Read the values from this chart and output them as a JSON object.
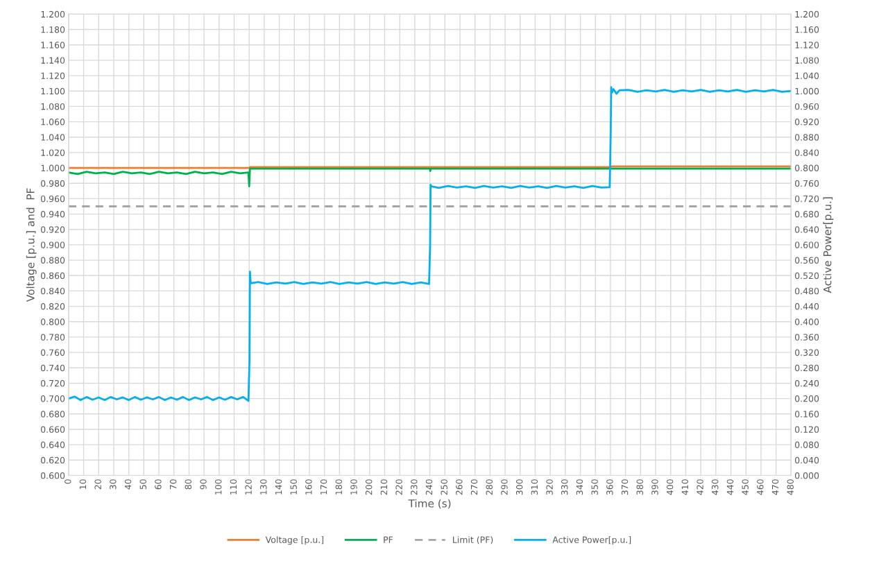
{
  "chart_data": {
    "type": "line",
    "xlabel": "Time (s)",
    "ylabel": "Voltage [p.u.] and  PF",
    "y2label": "Active Power[p.u.]",
    "xlim": [
      0,
      480
    ],
    "xticks": [
      0,
      10,
      20,
      30,
      40,
      50,
      60,
      70,
      80,
      90,
      100,
      110,
      120,
      130,
      140,
      150,
      160,
      170,
      180,
      190,
      200,
      210,
      220,
      230,
      240,
      250,
      260,
      270,
      280,
      290,
      300,
      310,
      320,
      330,
      340,
      350,
      360,
      370,
      380,
      390,
      400,
      410,
      420,
      430,
      440,
      450,
      460,
      470,
      480
    ],
    "ylim": [
      0.6,
      1.2
    ],
    "yticks": [
      {
        "value": 0.6,
        "label": "0.600"
      },
      {
        "value": 0.62,
        "label": "0.620"
      },
      {
        "value": 0.64,
        "label": "0.640"
      },
      {
        "value": 0.66,
        "label": "0.660"
      },
      {
        "value": 0.68,
        "label": "0.680"
      },
      {
        "value": 0.7,
        "label": "0.700"
      },
      {
        "value": 0.72,
        "label": "0.720"
      },
      {
        "value": 0.74,
        "label": "0.740"
      },
      {
        "value": 0.76,
        "label": "0.760"
      },
      {
        "value": 0.78,
        "label": "0.780"
      },
      {
        "value": 0.8,
        "label": "0.800"
      },
      {
        "value": 0.82,
        "label": "0.820"
      },
      {
        "value": 0.84,
        "label": "0.840"
      },
      {
        "value": 0.86,
        "label": "0.860"
      },
      {
        "value": 0.88,
        "label": "0.880"
      },
      {
        "value": 0.9,
        "label": "0.900"
      },
      {
        "value": 0.92,
        "label": "0.920"
      },
      {
        "value": 0.94,
        "label": "0.940"
      },
      {
        "value": 0.96,
        "label": "0.960"
      },
      {
        "value": 0.98,
        "label": "0.980"
      },
      {
        "value": 1.0,
        "label": "1.000"
      },
      {
        "value": 1.02,
        "label": "1.020"
      },
      {
        "value": 1.04,
        "label": "1.040"
      },
      {
        "value": 1.06,
        "label": "1.060"
      },
      {
        "value": 1.08,
        "label": "1.080"
      },
      {
        "value": 1.1,
        "label": "1.100"
      },
      {
        "value": 1.12,
        "label": "1.120"
      },
      {
        "value": 1.14,
        "label": "1.140"
      },
      {
        "value": 1.16,
        "label": "1.160"
      },
      {
        "value": 1.18,
        "label": "1.180"
      },
      {
        "value": 1.2,
        "label": "1.200"
      }
    ],
    "y2lim": [
      0,
      1.2
    ],
    "y2ticks": [
      {
        "value": 0,
        "label": "0.000"
      },
      {
        "value": 0.04,
        "label": "0.040"
      },
      {
        "value": 0.08,
        "label": "0.080"
      },
      {
        "value": 0.12,
        "label": "0.120"
      },
      {
        "value": 0.16,
        "label": "0.160"
      },
      {
        "value": 0.2,
        "label": "0.200"
      },
      {
        "value": 0.24,
        "label": "0.240"
      },
      {
        "value": 0.28,
        "label": "0.280"
      },
      {
        "value": 0.32,
        "label": "0.320"
      },
      {
        "value": 0.36,
        "label": "0.360"
      },
      {
        "value": 0.4,
        "label": "0.400"
      },
      {
        "value": 0.44,
        "label": "0.440"
      },
      {
        "value": 0.48,
        "label": "0.480"
      },
      {
        "value": 0.52,
        "label": "0.520"
      },
      {
        "value": 0.56,
        "label": "0.560"
      },
      {
        "value": 0.6,
        "label": "0.600"
      },
      {
        "value": 0.64,
        "label": "0.640"
      },
      {
        "value": 0.68,
        "label": "0.680"
      },
      {
        "value": 0.72,
        "label": "0.720"
      },
      {
        "value": 0.76,
        "label": "0.760"
      },
      {
        "value": 0.8,
        "label": "0.800"
      },
      {
        "value": 0.84,
        "label": "0.840"
      },
      {
        "value": 0.88,
        "label": "0.880"
      },
      {
        "value": 0.92,
        "label": "0.920"
      },
      {
        "value": 0.96,
        "label": "0.960"
      },
      {
        "value": 1.0,
        "label": "1.000"
      },
      {
        "value": 1.04,
        "label": "1.040"
      },
      {
        "value": 1.08,
        "label": "1.080"
      },
      {
        "value": 1.12,
        "label": "1.120"
      },
      {
        "value": 1.16,
        "label": "1.160"
      },
      {
        "value": 1.2,
        "label": "1.200"
      }
    ],
    "grid": true,
    "legend": "bottom",
    "marker": "none",
    "series": [
      {
        "name": "Voltage [p.u.]",
        "color": "#ed7d31",
        "line_style": "solid",
        "x": [
          0,
          120,
          120.5,
          360,
          360.5,
          480
        ],
        "values": [
          1.0,
          1.0,
          1.001,
          1.001,
          1.002,
          1.002
        ]
      },
      {
        "name": "PF",
        "color": "#00b050",
        "line_style": "solid",
        "x": [
          0,
          6,
          12,
          18,
          24,
          30,
          36,
          42,
          48,
          54,
          60,
          66,
          72,
          78,
          84,
          90,
          96,
          102,
          108,
          114,
          119.5,
          120,
          120.5,
          240,
          240.3,
          240.6,
          480
        ],
        "values": [
          0.994,
          0.992,
          0.995,
          0.993,
          0.994,
          0.992,
          0.995,
          0.993,
          0.994,
          0.992,
          0.995,
          0.993,
          0.994,
          0.992,
          0.995,
          0.993,
          0.994,
          0.992,
          0.995,
          0.993,
          0.994,
          0.976,
          0.999,
          0.999,
          0.996,
          0.999,
          0.999
        ]
      },
      {
        "name": "Limit (PF)",
        "color": "#a5a5a5",
        "line_style": "dashed",
        "x": [
          0,
          480
        ],
        "values": [
          0.95,
          0.95
        ]
      },
      {
        "name": "Active Power[p.u.]",
        "color": "#00b0f0",
        "axis": "y2",
        "line_style": "solid",
        "x": [
          0,
          4,
          8,
          12,
          16,
          20,
          24,
          28,
          32,
          36,
          40,
          44,
          48,
          52,
          56,
          60,
          64,
          68,
          72,
          76,
          80,
          84,
          88,
          92,
          96,
          100,
          104,
          108,
          112,
          116,
          119.5,
          120.2,
          120.5,
          121,
          126,
          132,
          138,
          144,
          150,
          156,
          162,
          168,
          174,
          180,
          186,
          192,
          198,
          204,
          210,
          216,
          222,
          228,
          234,
          239.5,
          240.2,
          240.5,
          241,
          246,
          252,
          258,
          264,
          270,
          276,
          282,
          288,
          294,
          300,
          306,
          312,
          318,
          324,
          330,
          336,
          342,
          348,
          354,
          359.5,
          360.2,
          360.5,
          361,
          362,
          364,
          366,
          372,
          378,
          384,
          390,
          396,
          402,
          408,
          414,
          420,
          426,
          432,
          438,
          444,
          450,
          456,
          462,
          468,
          474,
          480
        ],
        "values": [
          0.2,
          0.205,
          0.196,
          0.204,
          0.197,
          0.203,
          0.196,
          0.204,
          0.198,
          0.203,
          0.196,
          0.204,
          0.197,
          0.203,
          0.198,
          0.204,
          0.196,
          0.203,
          0.197,
          0.204,
          0.196,
          0.203,
          0.198,
          0.204,
          0.196,
          0.203,
          0.197,
          0.204,
          0.198,
          0.204,
          0.194,
          0.3,
          0.53,
          0.5,
          0.503,
          0.498,
          0.502,
          0.499,
          0.503,
          0.498,
          0.502,
          0.499,
          0.503,
          0.498,
          0.502,
          0.499,
          0.503,
          0.498,
          0.502,
          0.499,
          0.503,
          0.498,
          0.502,
          0.498,
          0.6,
          0.756,
          0.752,
          0.748,
          0.753,
          0.749,
          0.752,
          0.748,
          0.753,
          0.749,
          0.752,
          0.748,
          0.753,
          0.749,
          0.752,
          0.748,
          0.753,
          0.749,
          0.752,
          0.748,
          0.753,
          0.749,
          0.75,
          0.9,
          1.01,
          0.996,
          1.005,
          0.993,
          1.002,
          1.003,
          0.998,
          1.002,
          0.999,
          1.003,
          0.998,
          1.002,
          0.999,
          1.003,
          0.998,
          1.002,
          0.999,
          1.003,
          0.998,
          1.002,
          0.999,
          1.003,
          0.998,
          1.0
        ]
      }
    ]
  }
}
